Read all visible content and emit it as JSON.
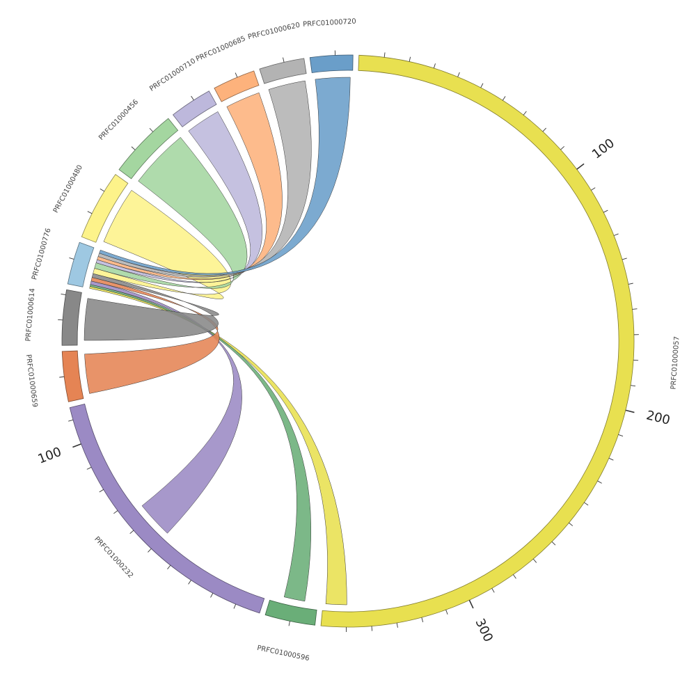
{
  "chart_data": {
    "type": "chord",
    "title": "",
    "units_per_tick": 10,
    "labelled_tick_values": [
      "100",
      "200",
      "300"
    ],
    "segments": [
      {
        "name": "PRFC01000057",
        "size": 360,
        "color": "#e8e050"
      },
      {
        "name": "PRFC01000596",
        "size": 20,
        "color": "#6aae78"
      },
      {
        "name": "PRFC01000232",
        "size": 115,
        "color": "#9b8ac4"
      },
      {
        "name": "PRFC01000659",
        "size": 20,
        "color": "#e58454"
      },
      {
        "name": "PRFC01000614",
        "size": 22,
        "color": "#888888"
      },
      {
        "name": "PRFC01000776",
        "size": 17,
        "color": "#9ec8e2"
      },
      {
        "name": "PRFC01000480",
        "size": 28,
        "color": "#fdf38a"
      },
      {
        "name": "PRFC01000456",
        "size": 28,
        "color": "#a4d6a0"
      },
      {
        "name": "PRFC01000710",
        "size": 17,
        "color": "#bdb8dc"
      },
      {
        "name": "PRFC01000685",
        "size": 17,
        "color": "#fdb27c"
      },
      {
        "name": "PRFC01000620",
        "size": 18,
        "color": "#b3b3b3"
      },
      {
        "name": "PRFC01000720",
        "size": 17,
        "color": "#6a9ec9"
      }
    ],
    "links": [
      {
        "source": "PRFC01000057",
        "target": "PRFC01000776",
        "value": 9
      },
      {
        "source": "PRFC01000596",
        "target": "PRFC01000776",
        "value": 9
      },
      {
        "source": "PRFC01000232",
        "target": "PRFC01000776",
        "value": 16
      },
      {
        "source": "PRFC01000659",
        "target": "PRFC01000776",
        "value": 17
      },
      {
        "source": "PRFC01000614",
        "target": "PRFC01000776",
        "value": 18
      },
      {
        "source": "PRFC01000480",
        "target": "PRFC01000776",
        "value": 25
      },
      {
        "source": "PRFC01000456",
        "target": "PRFC01000776",
        "value": 26
      },
      {
        "source": "PRFC01000710",
        "target": "PRFC01000776",
        "value": 15
      },
      {
        "source": "PRFC01000685",
        "target": "PRFC01000776",
        "value": 15
      },
      {
        "source": "PRFC01000620",
        "target": "PRFC01000776",
        "value": 16
      },
      {
        "source": "PRFC01000720",
        "target": "PRFC01000776",
        "value": 15
      }
    ]
  }
}
